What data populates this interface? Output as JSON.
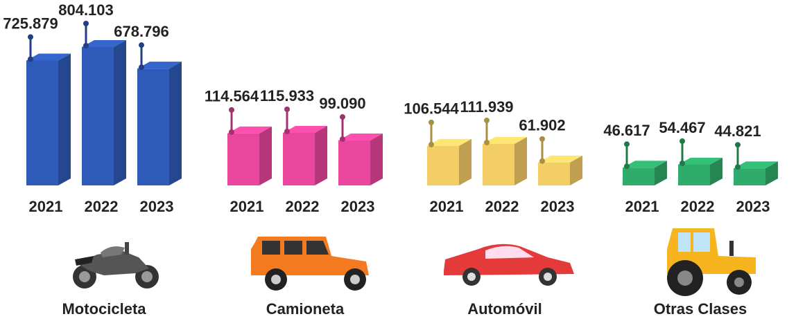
{
  "chart_data": [
    {
      "type": "bar",
      "title": "Motocicleta",
      "color": "#2f5bb8",
      "categories": [
        "2021",
        "2022",
        "2023"
      ],
      "values": [
        725879,
        804103,
        678796
      ],
      "value_labels": [
        "725.879",
        "804.103",
        "678.796"
      ]
    },
    {
      "type": "bar",
      "title": "Camioneta",
      "color": "#e8479d",
      "categories": [
        "2021",
        "2022",
        "2023"
      ],
      "values": [
        114564,
        115933,
        99090
      ],
      "value_labels": [
        "114.564",
        "115.933",
        "99.090"
      ]
    },
    {
      "type": "bar",
      "title": "Automóvil",
      "color": "#f3cd66",
      "categories": [
        "2021",
        "2022",
        "2023"
      ],
      "values": [
        106544,
        111939,
        61902
      ],
      "value_labels": [
        "106.544",
        "111.939",
        "61.902"
      ]
    },
    {
      "type": "bar",
      "title": "Otras Clases",
      "color": "#2fab6b",
      "categories": [
        "2021",
        "2022",
        "2023"
      ],
      "values": [
        46617,
        54467,
        44821
      ],
      "value_labels": [
        "46.617",
        "54.467",
        "44.821"
      ]
    }
  ]
}
